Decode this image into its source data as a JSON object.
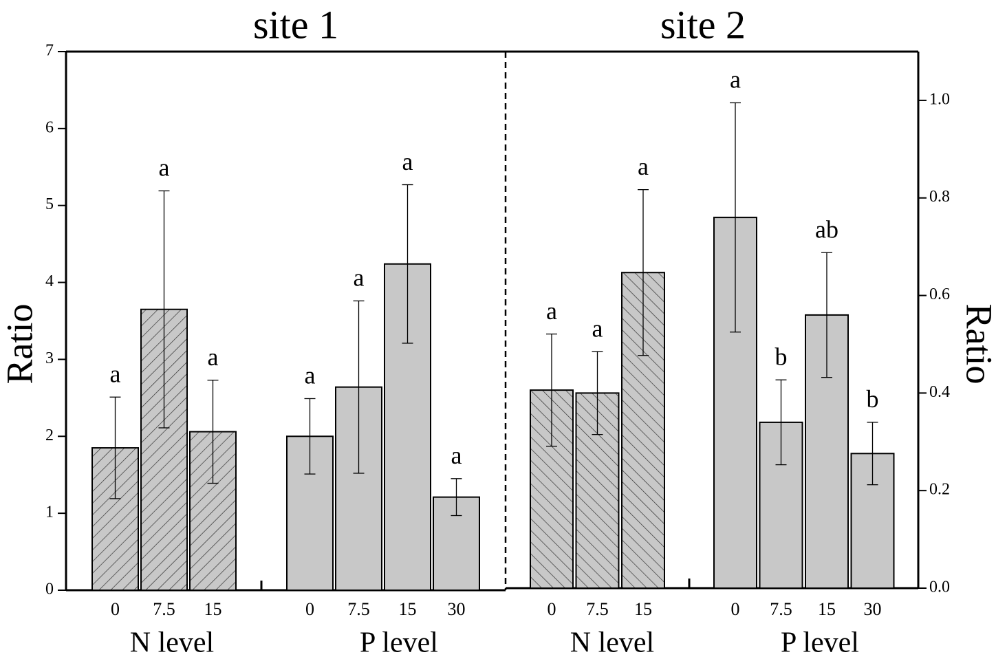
{
  "chart_data": [
    {
      "type": "bar",
      "title": "site 1",
      "ylabel": "Ratio",
      "axis_side": "left",
      "color": "#c8c8c8",
      "ylim": [
        0,
        7
      ],
      "yticks": [
        0,
        1,
        2,
        3,
        4,
        5,
        6,
        7
      ],
      "groups": [
        {
          "name": "N level",
          "hatch": "/",
          "categories": [
            "0",
            "7.5",
            "15"
          ],
          "values": [
            1.85,
            3.65,
            2.06
          ],
          "errors": [
            0.66,
            1.54,
            0.67
          ],
          "letters": [
            "a",
            "a",
            "a"
          ]
        },
        {
          "name": "P level",
          "categories": [
            "0",
            "7.5",
            "15",
            "30"
          ],
          "values": [
            2.0,
            2.64,
            4.24,
            1.21
          ],
          "errors": [
            0.49,
            1.12,
            1.03,
            0.24
          ],
          "letters": [
            "a",
            "a",
            "a",
            "a"
          ]
        }
      ]
    },
    {
      "type": "bar",
      "title": "site 2",
      "ylabel": "Ratio",
      "axis_side": "right",
      "color": "#c8c8c8",
      "ylim": [
        0,
        1.1
      ],
      "yticks": [
        {
          "value": 0,
          "label": "0.0"
        },
        0.2,
        0.4,
        0.6,
        0.8,
        {
          "value": 1,
          "label": "1.0"
        }
      ],
      "groups": [
        {
          "name": "N level",
          "hatch": "\\",
          "categories": [
            "0",
            "7.5",
            "15"
          ],
          "values": [
            0.406,
            0.4,
            0.647
          ],
          "errors": [
            0.115,
            0.085,
            0.17
          ],
          "letters": [
            "a",
            "a",
            "a"
          ]
        },
        {
          "name": "P level",
          "categories": [
            "0",
            "7.5",
            "15",
            "30"
          ],
          "values": [
            0.76,
            0.34,
            0.56,
            0.276
          ],
          "errors": [
            0.235,
            0.087,
            0.128,
            0.064
          ],
          "letters": [
            "a",
            "b",
            "ab",
            "b"
          ]
        }
      ]
    }
  ]
}
